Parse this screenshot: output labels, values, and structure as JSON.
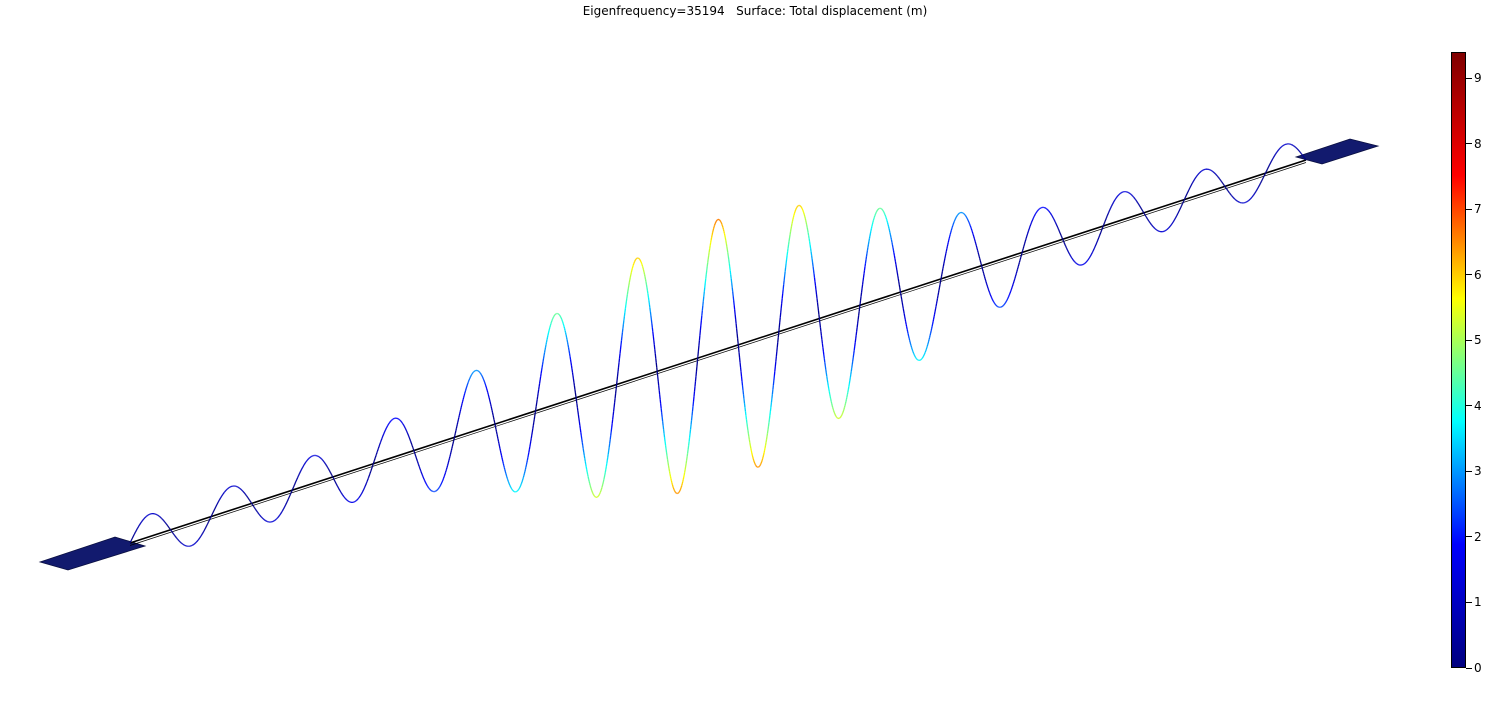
{
  "title": {
    "eigenfrequency": "Eigenfrequency=35194",
    "surface": "Surface: Total displacement (m)"
  },
  "colorbar": {
    "min": 0,
    "max": 9.4,
    "colormap": [
      "#00007f",
      "#0000ff",
      "#00ffff",
      "#ffff00",
      "#ff0000",
      "#7f0000"
    ],
    "ticks": [
      "0",
      "1",
      "2",
      "3",
      "4",
      "5",
      "6",
      "7",
      "8",
      "9"
    ]
  },
  "colors": {
    "pad": "#121a6e",
    "axis": "#000000"
  }
}
